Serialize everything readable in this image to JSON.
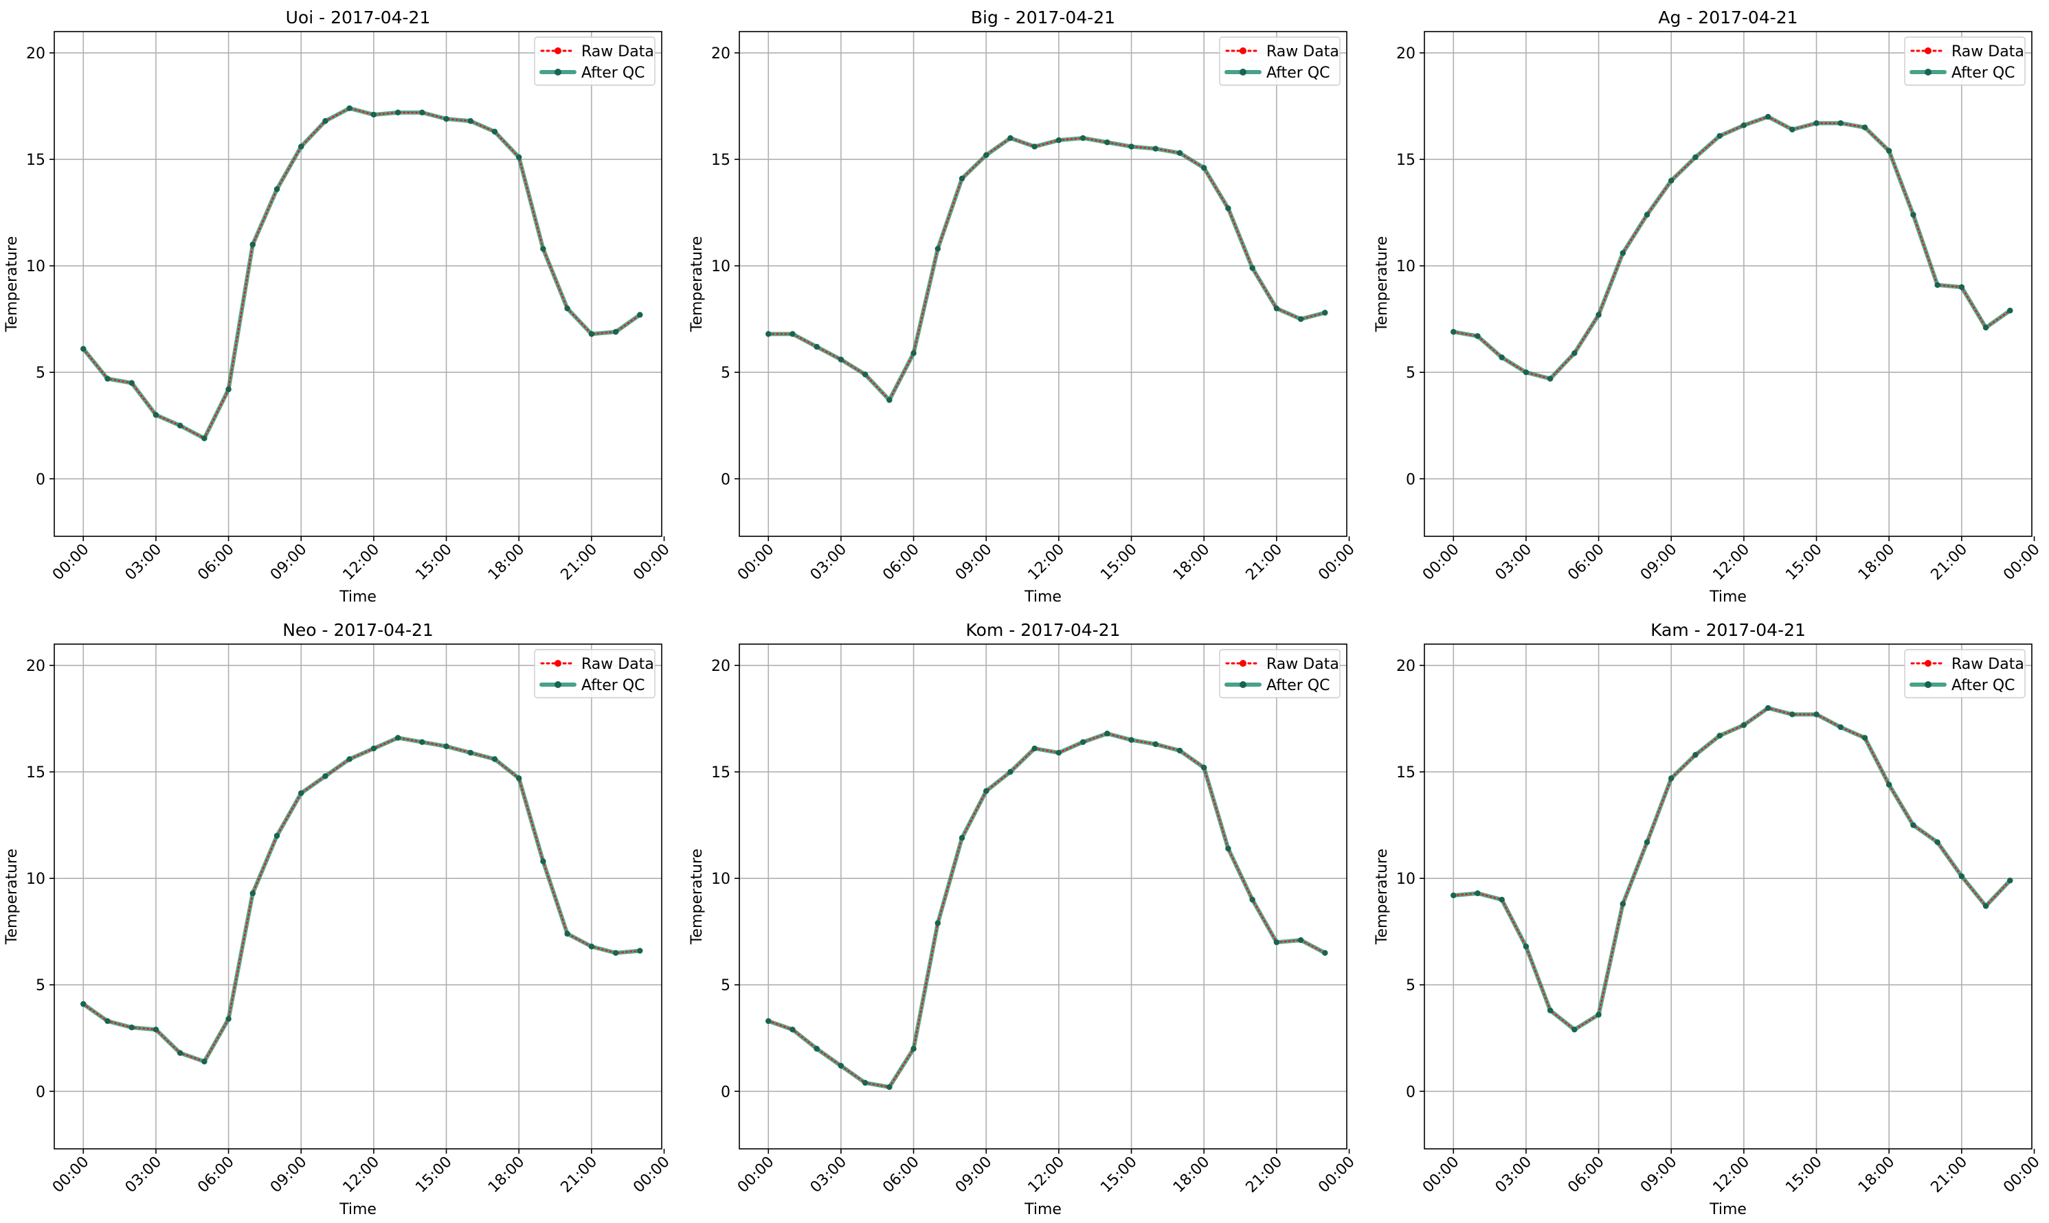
{
  "chart_data": [
    {
      "type": "line",
      "title": "Uoi - 2017-04-21",
      "xlabel": "Time",
      "ylabel": "Temperature",
      "xlim": [
        -1.2,
        23.9
      ],
      "ylim": [
        -2.7,
        21
      ],
      "x_ticks": [
        0,
        3,
        6,
        9,
        12,
        15,
        18,
        21,
        24
      ],
      "x_tick_labels": [
        "00:00",
        "03:00",
        "06:00",
        "09:00",
        "12:00",
        "15:00",
        "18:00",
        "21:00",
        "00:00"
      ],
      "y_ticks": [
        0,
        5,
        10,
        15,
        20
      ],
      "y_tick_labels": [
        "0",
        "5",
        "10",
        "15",
        "20"
      ],
      "grid": true,
      "legend_position": "top-right",
      "x": [
        0,
        1,
        2,
        3,
        4,
        5,
        6,
        7,
        8,
        9,
        10,
        11,
        12,
        13,
        14,
        15,
        16,
        17,
        18,
        19,
        20,
        21,
        22,
        23
      ],
      "series": [
        {
          "name": "Raw Data",
          "color": "#ff0000",
          "style": "dotted",
          "values": [
            6.1,
            4.7,
            4.5,
            3.0,
            2.5,
            1.9,
            4.2,
            11.0,
            13.6,
            15.6,
            16.8,
            17.4,
            17.1,
            17.2,
            17.2,
            16.9,
            16.8,
            16.3,
            15.1,
            10.8,
            8.0,
            6.8,
            6.9,
            7.7
          ]
        },
        {
          "name": "After QC",
          "color": "#1a8a6a",
          "style": "solid",
          "values": [
            6.1,
            4.7,
            4.5,
            3.0,
            2.5,
            1.9,
            4.2,
            11.0,
            13.6,
            15.6,
            16.8,
            17.4,
            17.1,
            17.2,
            17.2,
            16.9,
            16.8,
            16.3,
            15.1,
            10.8,
            8.0,
            6.8,
            6.9,
            7.7
          ]
        }
      ]
    },
    {
      "type": "line",
      "title": "Big - 2017-04-21",
      "xlabel": "Time",
      "ylabel": "Temperature",
      "xlim": [
        -1.2,
        23.9
      ],
      "ylim": [
        -2.7,
        21
      ],
      "x_ticks": [
        0,
        3,
        6,
        9,
        12,
        15,
        18,
        21,
        24
      ],
      "x_tick_labels": [
        "00:00",
        "03:00",
        "06:00",
        "09:00",
        "12:00",
        "15:00",
        "18:00",
        "21:00",
        "00:00"
      ],
      "y_ticks": [
        0,
        5,
        10,
        15,
        20
      ],
      "y_tick_labels": [
        "0",
        "5",
        "10",
        "15",
        "20"
      ],
      "grid": true,
      "legend_position": "top-right",
      "x": [
        0,
        1,
        2,
        3,
        4,
        5,
        6,
        7,
        8,
        9,
        10,
        11,
        12,
        13,
        14,
        15,
        16,
        17,
        18,
        19,
        20,
        21,
        22,
        23
      ],
      "series": [
        {
          "name": "Raw Data",
          "color": "#ff0000",
          "style": "dotted",
          "values": [
            6.8,
            6.8,
            6.2,
            5.6,
            4.9,
            3.7,
            5.9,
            10.8,
            14.1,
            15.2,
            16.0,
            15.6,
            15.9,
            16.0,
            15.8,
            15.6,
            15.5,
            15.3,
            14.6,
            12.7,
            9.9,
            8.0,
            7.5,
            7.8
          ]
        },
        {
          "name": "After QC",
          "color": "#1a8a6a",
          "style": "solid",
          "values": [
            6.8,
            6.8,
            6.2,
            5.6,
            4.9,
            3.7,
            5.9,
            10.8,
            14.1,
            15.2,
            16.0,
            15.6,
            15.9,
            16.0,
            15.8,
            15.6,
            15.5,
            15.3,
            14.6,
            12.7,
            9.9,
            8.0,
            7.5,
            7.8
          ]
        }
      ]
    },
    {
      "type": "line",
      "title": "Ag - 2017-04-21",
      "xlabel": "Time",
      "ylabel": "Temperature",
      "xlim": [
        -1.2,
        23.9
      ],
      "ylim": [
        -2.7,
        21
      ],
      "x_ticks": [
        0,
        3,
        6,
        9,
        12,
        15,
        18,
        21,
        24
      ],
      "x_tick_labels": [
        "00:00",
        "03:00",
        "06:00",
        "09:00",
        "12:00",
        "15:00",
        "18:00",
        "21:00",
        "00:00"
      ],
      "y_ticks": [
        0,
        5,
        10,
        15,
        20
      ],
      "y_tick_labels": [
        "0",
        "5",
        "10",
        "15",
        "20"
      ],
      "grid": true,
      "legend_position": "top-right",
      "x": [
        0,
        1,
        2,
        3,
        4,
        5,
        6,
        7,
        8,
        9,
        10,
        11,
        12,
        13,
        14,
        15,
        16,
        17,
        18,
        19,
        20,
        21,
        22,
        23
      ],
      "series": [
        {
          "name": "Raw Data",
          "color": "#ff0000",
          "style": "dotted",
          "values": [
            6.9,
            6.7,
            5.7,
            5.0,
            4.7,
            5.9,
            7.7,
            10.6,
            12.4,
            14.0,
            15.1,
            16.1,
            16.6,
            17.0,
            16.4,
            16.7,
            16.7,
            16.5,
            15.4,
            12.4,
            9.1,
            9.0,
            7.1,
            7.9
          ]
        },
        {
          "name": "After QC",
          "color": "#1a8a6a",
          "style": "solid",
          "values": [
            6.9,
            6.7,
            5.7,
            5.0,
            4.7,
            5.9,
            7.7,
            10.6,
            12.4,
            14.0,
            15.1,
            16.1,
            16.6,
            17.0,
            16.4,
            16.7,
            16.7,
            16.5,
            15.4,
            12.4,
            9.1,
            9.0,
            7.1,
            7.9
          ]
        }
      ]
    },
    {
      "type": "line",
      "title": "Neo - 2017-04-21",
      "xlabel": "Time",
      "ylabel": "Temperature",
      "xlim": [
        -1.2,
        23.9
      ],
      "ylim": [
        -2.7,
        21
      ],
      "x_ticks": [
        0,
        3,
        6,
        9,
        12,
        15,
        18,
        21,
        24
      ],
      "x_tick_labels": [
        "00:00",
        "03:00",
        "06:00",
        "09:00",
        "12:00",
        "15:00",
        "18:00",
        "21:00",
        "00:00"
      ],
      "y_ticks": [
        0,
        5,
        10,
        15,
        20
      ],
      "y_tick_labels": [
        "0",
        "5",
        "10",
        "15",
        "20"
      ],
      "grid": true,
      "legend_position": "top-right",
      "x": [
        0,
        1,
        2,
        3,
        4,
        5,
        6,
        7,
        8,
        9,
        10,
        11,
        12,
        13,
        14,
        15,
        16,
        17,
        18,
        19,
        20,
        21,
        22,
        23
      ],
      "series": [
        {
          "name": "Raw Data",
          "color": "#ff0000",
          "style": "dotted",
          "values": [
            4.1,
            3.3,
            3.0,
            2.9,
            1.8,
            1.4,
            3.4,
            9.3,
            12.0,
            14.0,
            14.8,
            15.6,
            16.1,
            16.6,
            16.4,
            16.2,
            15.9,
            15.6,
            14.7,
            10.8,
            7.4,
            6.8,
            6.5,
            6.6
          ]
        },
        {
          "name": "After QC",
          "color": "#1a8a6a",
          "style": "solid",
          "values": [
            4.1,
            3.3,
            3.0,
            2.9,
            1.8,
            1.4,
            3.4,
            9.3,
            12.0,
            14.0,
            14.8,
            15.6,
            16.1,
            16.6,
            16.4,
            16.2,
            15.9,
            15.6,
            14.7,
            10.8,
            7.4,
            6.8,
            6.5,
            6.6
          ]
        }
      ]
    },
    {
      "type": "line",
      "title": "Kom - 2017-04-21",
      "xlabel": "Time",
      "ylabel": "Temperature",
      "xlim": [
        -1.2,
        23.9
      ],
      "ylim": [
        -2.7,
        21
      ],
      "x_ticks": [
        0,
        3,
        6,
        9,
        12,
        15,
        18,
        21,
        24
      ],
      "x_tick_labels": [
        "00:00",
        "03:00",
        "06:00",
        "09:00",
        "12:00",
        "15:00",
        "18:00",
        "21:00",
        "00:00"
      ],
      "y_ticks": [
        0,
        5,
        10,
        15,
        20
      ],
      "y_tick_labels": [
        "0",
        "5",
        "10",
        "15",
        "20"
      ],
      "grid": true,
      "legend_position": "top-right",
      "x": [
        0,
        1,
        2,
        3,
        4,
        5,
        6,
        7,
        8,
        9,
        10,
        11,
        12,
        13,
        14,
        15,
        16,
        17,
        18,
        19,
        20,
        21,
        22,
        23
      ],
      "series": [
        {
          "name": "Raw Data",
          "color": "#ff0000",
          "style": "dotted",
          "values": [
            3.3,
            2.9,
            2.0,
            1.2,
            0.4,
            0.2,
            2.0,
            7.9,
            11.9,
            14.1,
            15.0,
            16.1,
            15.9,
            16.4,
            16.8,
            16.5,
            16.3,
            16.0,
            15.2,
            11.4,
            9.0,
            7.0,
            7.1,
            6.5
          ]
        },
        {
          "name": "After QC",
          "color": "#1a8a6a",
          "style": "solid",
          "values": [
            3.3,
            2.9,
            2.0,
            1.2,
            0.4,
            0.2,
            2.0,
            7.9,
            11.9,
            14.1,
            15.0,
            16.1,
            15.9,
            16.4,
            16.8,
            16.5,
            16.3,
            16.0,
            15.2,
            11.4,
            9.0,
            7.0,
            7.1,
            6.5
          ]
        }
      ]
    },
    {
      "type": "line",
      "title": "Kam - 2017-04-21",
      "xlabel": "Time",
      "ylabel": "Temperature",
      "xlim": [
        -1.2,
        23.9
      ],
      "ylim": [
        -2.7,
        21
      ],
      "x_ticks": [
        0,
        3,
        6,
        9,
        12,
        15,
        18,
        21,
        24
      ],
      "x_tick_labels": [
        "00:00",
        "03:00",
        "06:00",
        "09:00",
        "12:00",
        "15:00",
        "18:00",
        "21:00",
        "00:00"
      ],
      "y_ticks": [
        0,
        5,
        10,
        15,
        20
      ],
      "y_tick_labels": [
        "0",
        "5",
        "10",
        "15",
        "20"
      ],
      "grid": true,
      "legend_position": "top-right",
      "x": [
        0,
        1,
        2,
        3,
        4,
        5,
        6,
        7,
        8,
        9,
        10,
        11,
        12,
        13,
        14,
        15,
        16,
        17,
        18,
        19,
        20,
        21,
        22,
        23
      ],
      "series": [
        {
          "name": "Raw Data",
          "color": "#ff0000",
          "style": "dotted",
          "values": [
            9.2,
            9.3,
            9.0,
            6.8,
            3.8,
            2.9,
            3.6,
            8.8,
            11.7,
            14.7,
            15.8,
            16.7,
            17.2,
            18.0,
            17.7,
            17.7,
            17.1,
            16.6,
            14.4,
            12.5,
            11.7,
            10.1,
            8.7,
            9.9
          ]
        },
        {
          "name": "After QC",
          "color": "#1a8a6a",
          "style": "solid",
          "values": [
            9.2,
            9.3,
            9.0,
            6.8,
            3.8,
            2.9,
            3.6,
            8.8,
            11.7,
            14.7,
            15.8,
            16.7,
            17.2,
            18.0,
            17.7,
            17.7,
            17.1,
            16.6,
            14.4,
            12.5,
            11.7,
            10.1,
            8.7,
            9.9
          ]
        }
      ]
    }
  ]
}
